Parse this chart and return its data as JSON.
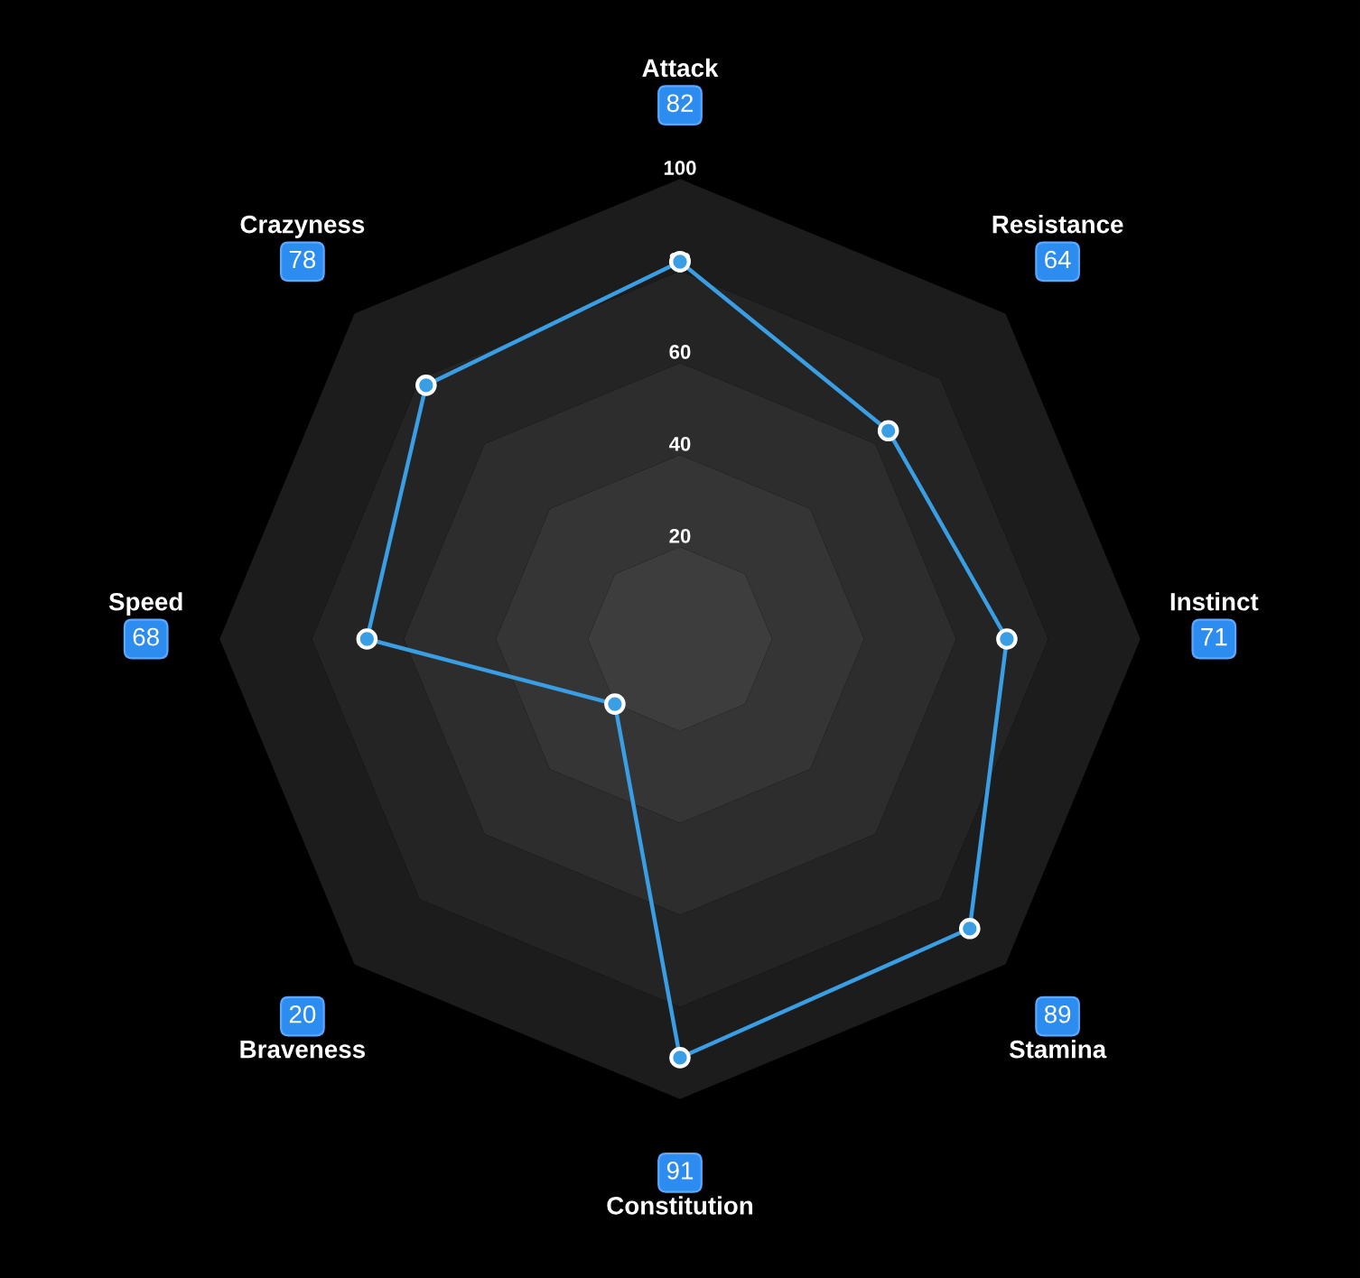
{
  "chart_data": {
    "type": "radar",
    "categories": [
      "Attack",
      "Resistance",
      "Instinct",
      "Stamina",
      "Constitution",
      "Braveness",
      "Speed",
      "Crazyness"
    ],
    "series": [
      {
        "color": "#3a9ee4",
        "values": [
          82,
          64,
          71,
          89,
          91,
          20,
          68,
          78
        ]
      }
    ],
    "annotations": [
      "82",
      "64",
      "71",
      "89",
      "91",
      "20",
      "68",
      "78"
    ],
    "ylim": [
      0,
      100
    ],
    "yticks": [
      20,
      40,
      60,
      80,
      100
    ],
    "marker": "circle",
    "grid": false,
    "legend": false
  }
}
